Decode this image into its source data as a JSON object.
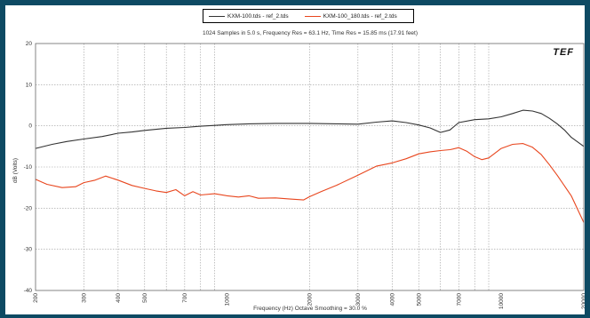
{
  "colors": {
    "background": "#0e4a63",
    "plot": "#ffffff",
    "grid": "#9a9a9a",
    "series_black": "#333333",
    "series_red": "#e8461e"
  },
  "logo_text": "TEF",
  "chart_data": {
    "type": "line",
    "title": "1024 Samples in 5.0 s, Frequency Res = 63.1 Hz, Time Res = 15.85 ms (17.91 feet)",
    "xlabel": "Frequency (Hz) Octave Smoothing = 30.0 %",
    "ylabel": "dB (Volts)",
    "x_scale": "log",
    "xlim": [
      200,
      20000
    ],
    "ylim": [
      -40,
      20
    ],
    "grid": true,
    "legend_position": "top",
    "x_tick_labels": [
      "200",
      "300",
      "400",
      "500",
      "700",
      "1000",
      "2000",
      "3000",
      "4000",
      "5000",
      "7000",
      "10000",
      "20000"
    ],
    "x_ticks": [
      200,
      300,
      400,
      500,
      700,
      1000,
      2000,
      3000,
      4000,
      5000,
      7000,
      10000,
      20000
    ],
    "y_ticks": [
      20,
      10,
      0,
      -10,
      -20,
      -30,
      -40
    ],
    "y_tick_labels": [
      "20",
      "10",
      "0",
      "-10",
      "-20",
      "-30",
      "-40"
    ],
    "series": [
      {
        "name": "KXM-100.tds - ref_2.tds",
        "color": "#333333",
        "x": [
          200,
          230,
          260,
          300,
          350,
          400,
          450,
          500,
          600,
          700,
          800,
          900,
          1000,
          1200,
          1500,
          1800,
          2000,
          2500,
          3000,
          3500,
          4000,
          4500,
          5000,
          5500,
          6000,
          6500,
          7000,
          8000,
          9000,
          10000,
          11000,
          12000,
          13000,
          14000,
          15000,
          16000,
          17000,
          18000,
          20000
        ],
        "y": [
          -5.5,
          -4.5,
          -3.8,
          -3.2,
          -2.6,
          -1.8,
          -1.5,
          -1.1,
          -0.6,
          -0.4,
          -0.1,
          0.1,
          0.3,
          0.5,
          0.6,
          0.6,
          0.6,
          0.5,
          0.4,
          0.9,
          1.2,
          0.8,
          0.2,
          -0.5,
          -1.6,
          -1.0,
          0.8,
          1.5,
          1.7,
          2.2,
          3.0,
          3.8,
          3.6,
          3.0,
          1.8,
          0.5,
          -1.0,
          -2.8,
          -5.0
        ]
      },
      {
        "name": "KXM-100_180.tds - ref_2.tds",
        "color": "#e8461e",
        "x": [
          200,
          220,
          250,
          280,
          300,
          330,
          360,
          400,
          450,
          500,
          550,
          600,
          650,
          700,
          750,
          800,
          900,
          1000,
          1100,
          1200,
          1300,
          1500,
          1700,
          1900,
          2000,
          2200,
          2500,
          3000,
          3500,
          4000,
          4500,
          5000,
          5500,
          6000,
          6500,
          7000,
          7500,
          8000,
          8500,
          9000,
          10000,
          11000,
          12000,
          13000,
          14000,
          15000,
          16000,
          18000,
          20000
        ],
        "y": [
          -13.0,
          -14.2,
          -15.0,
          -14.8,
          -13.8,
          -13.2,
          -12.2,
          -13.2,
          -14.5,
          -15.2,
          -15.8,
          -16.2,
          -15.5,
          -17.0,
          -16.0,
          -16.8,
          -16.5,
          -17.0,
          -17.3,
          -17.0,
          -17.6,
          -17.5,
          -17.8,
          -18.0,
          -17.2,
          -16.0,
          -14.5,
          -12.0,
          -9.8,
          -9.0,
          -8.0,
          -6.8,
          -6.3,
          -6.0,
          -5.8,
          -5.3,
          -6.2,
          -7.5,
          -8.2,
          -7.8,
          -5.5,
          -4.5,
          -4.3,
          -5.2,
          -7.0,
          -9.5,
          -12.0,
          -17.0,
          -23.5
        ]
      }
    ]
  }
}
